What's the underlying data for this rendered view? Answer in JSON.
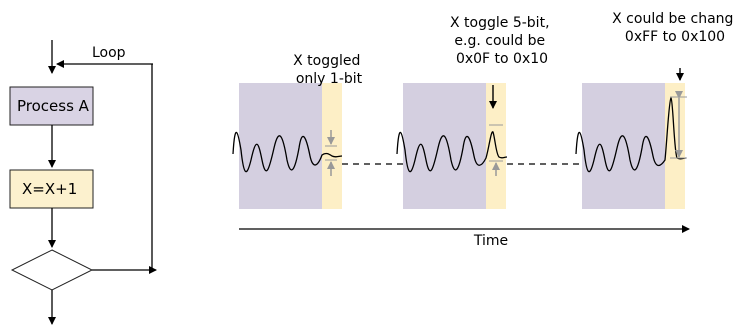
{
  "flowchart": {
    "loop_label": "Loop",
    "process_label": "Process A",
    "increment_label": "X=X+1"
  },
  "timeline": {
    "axis_label": "Time"
  },
  "panels": [
    {
      "annotation_lines": [
        "X toggled",
        "only 1-bit"
      ]
    },
    {
      "annotation_lines": [
        "X toggle 5-bit,",
        "e.g. could be",
        "0x0F to 0x10"
      ]
    },
    {
      "annotation_lines": [
        "X could be chang",
        "0xFF to 0x100"
      ]
    }
  ],
  "colors": {
    "process_box": "#d9d3e4",
    "increment_box": "#fcf1ce",
    "trace_background": "#d4cfe0",
    "highlight_band": "#fdefc6",
    "marker_gray": "#999999"
  }
}
